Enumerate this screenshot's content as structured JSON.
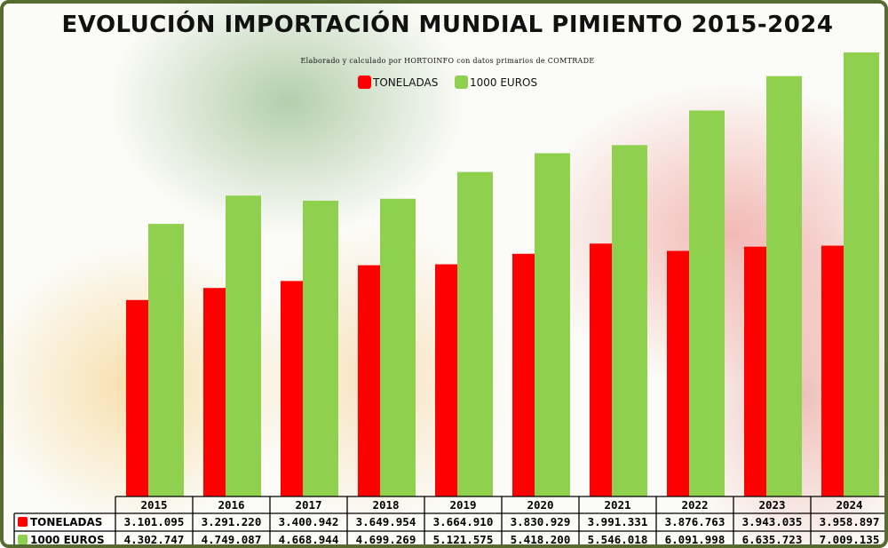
{
  "chart_data": {
    "type": "bar",
    "title": "EVOLUCIÓN IMPORTACIÓN MUNDIAL PIMIENTO 2015-2024",
    "subtitle": "Elaborado y calculado por HORTOINFO con datos primarios de COMTRADE",
    "categories": [
      "2015",
      "2016",
      "2017",
      "2018",
      "2019",
      "2020",
      "2021",
      "2022",
      "2023",
      "2024"
    ],
    "series": [
      {
        "name": "TONELADAS",
        "color": "#ff0000",
        "values": [
          3101095,
          3291220,
          3400942,
          3649954,
          3664910,
          3830929,
          3991331,
          3876763,
          3943035,
          3958897
        ],
        "labels": [
          "3.101.095",
          "3.291.220",
          "3.400.942",
          "3.649.954",
          "3.664.910",
          "3.830.929",
          "3.991.331",
          "3.876.763",
          "3.943.035",
          "3.958.897"
        ]
      },
      {
        "name": "1000 EUROS",
        "color": "#8fd14f",
        "values": [
          4302747,
          4749087,
          4668944,
          4699269,
          5121575,
          5418200,
          5546018,
          6091998,
          6635723,
          7009135
        ],
        "labels": [
          "4.302.747",
          "4.749.087",
          "4.668.944",
          "4.699.269",
          "5.121.575",
          "5.418.200",
          "5.546.018",
          "6.091.998",
          "6.635.723",
          "7.009.135"
        ]
      }
    ],
    "ylim": [
      0,
      7500000
    ],
    "legend_position": "top",
    "grid": false,
    "data_table": true
  }
}
